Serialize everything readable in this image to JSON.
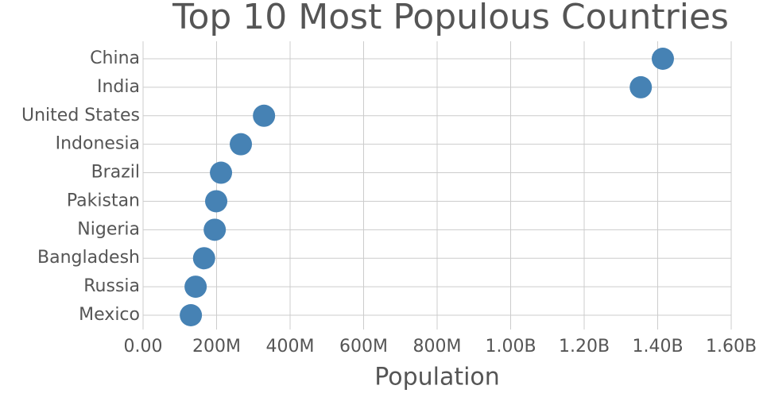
{
  "chart_data": {
    "type": "dot",
    "title": "Top 10 Most Populous Countries",
    "x_label": "Population",
    "categories": [
      "China",
      "India",
      "United States",
      "Indonesia",
      "Brazil",
      "Pakistan",
      "Nigeria",
      "Bangladesh",
      "Russia",
      "Mexico"
    ],
    "values": [
      1414000000,
      1354000000,
      329000000,
      266000000,
      212000000,
      199000000,
      195000000,
      166000000,
      143000000,
      130000000
    ],
    "color": "#4682b4",
    "xlim": [
      0,
      1600000000
    ],
    "xticks": [
      {
        "value": 0,
        "label": "0.00"
      },
      {
        "value": 200000000,
        "label": "200M"
      },
      {
        "value": 400000000,
        "label": "400M"
      },
      {
        "value": 600000000,
        "label": "600M"
      },
      {
        "value": 800000000,
        "label": "800M"
      },
      {
        "value": 1000000000,
        "label": "1.00B"
      },
      {
        "value": 1200000000,
        "label": "1.20B"
      },
      {
        "value": 1400000000,
        "label": "1.40B"
      },
      {
        "value": 1600000000,
        "label": "1.60B"
      }
    ],
    "grid": true
  }
}
